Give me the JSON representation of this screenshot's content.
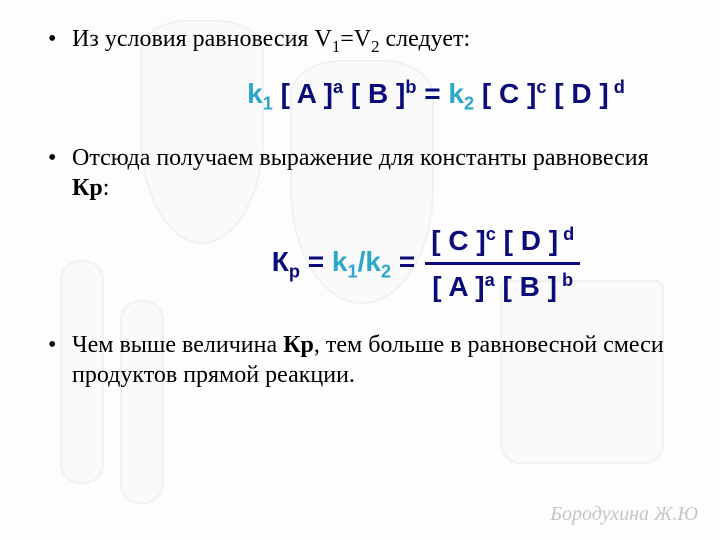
{
  "bullets": {
    "b1_pre": "Из условия равновесия ",
    "b1_v1": "V",
    "b1_s1": "1",
    "b1_eq": "=",
    "b1_v2": "V",
    "b1_s2": "2",
    "b1_post": " следует:",
    "b2": "Отсюда получаем выражение для константы равновесия ",
    "b2_kp": "Кр",
    "b2_colon": ":",
    "b3_a": "Чем выше величина ",
    "b3_kp": "Кр",
    "b3_b": ", тем больше в равновесной смеси продуктов прямой реакции."
  },
  "eq1": {
    "k1": "k",
    "k1sub": "1",
    "A": "[ A ]",
    "a": "a",
    "B": "[ B ]",
    "b": "b",
    "eq": " = ",
    "k2": "k",
    "k2sub": "2",
    "C": " [ C ]",
    "c": "c",
    "D": " [ D ]",
    "d": " d"
  },
  "eq2": {
    "K": "К",
    "Ksub": "р",
    "eq1": " = ",
    "k1": "k",
    "k1sub": "1",
    "slash": "/",
    "k2": "k",
    "k2sub": "2",
    "eq2": " = ",
    "top": {
      "C": "[ C ]",
      "c": "c",
      "D": " [ D ]",
      "d": " d"
    },
    "bot": {
      "A": "[ A ]",
      "a": "a",
      "B": " [ B ]",
      "b": " b"
    }
  },
  "watermark": "Бородухина Ж.Ю",
  "colors": {
    "formula": "#0b0b7a",
    "k_accent": "#2aa7c9",
    "text": "#000000",
    "background": "#fdfdfd",
    "watermark": "rgba(0,0,0,0.22)",
    "bg_shape_border": "rgba(0,0,0,0.04)"
  },
  "fonts": {
    "body_family": "Times New Roman",
    "body_size_pt": 18,
    "formula_family": "Arial",
    "formula_size_pt": 21,
    "watermark_family": "Comic Sans MS",
    "watermark_size_pt": 15
  }
}
